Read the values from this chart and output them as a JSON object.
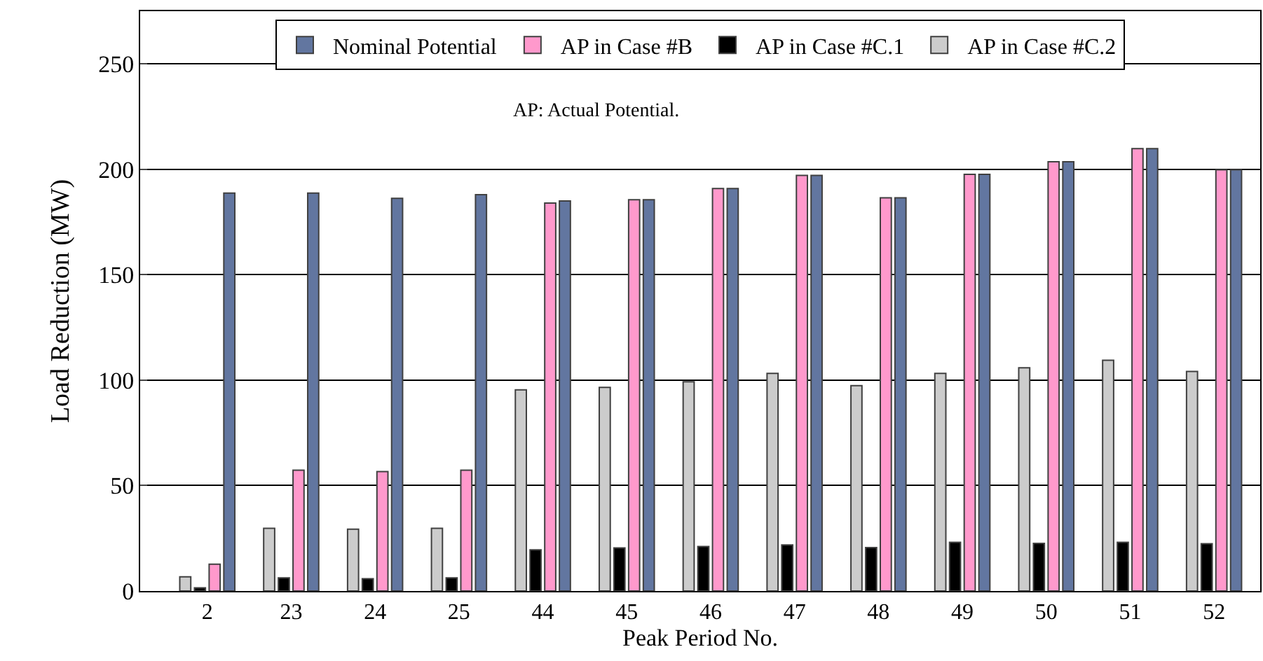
{
  "chart_data": {
    "type": "bar",
    "xlabel": "Peak Period No.",
    "ylabel": "Load Reduction (MW)",
    "categories": [
      "2",
      "23",
      "24",
      "25",
      "44",
      "45",
      "46",
      "47",
      "48",
      "49",
      "50",
      "51",
      "52"
    ],
    "series": [
      {
        "name": "Nominal Potential",
        "color": "#6276a0",
        "values": [
          188.7,
          188.7,
          186.2,
          188,
          185,
          185.6,
          190.9,
          197.1,
          186.5,
          197.6,
          203.6,
          209.8,
          199.8
        ]
      },
      {
        "name": "AP in Case #B",
        "color": "#ff99cc",
        "values": [
          12.7,
          57.3,
          56.6,
          57.3,
          184,
          185.6,
          190.9,
          197.1,
          186.5,
          197.6,
          203.6,
          209.8,
          199.8
        ]
      },
      {
        "name": "AP in Case #C.1",
        "color": "#000000",
        "values": [
          1.5,
          6.2,
          5.8,
          6.2,
          19.5,
          20.4,
          21.1,
          21.8,
          20.6,
          23.1,
          22.6,
          23.1,
          22.4
        ]
      },
      {
        "name": "AP in Case #C.2",
        "color": "#cccccc",
        "values": [
          6.7,
          29.7,
          29.3,
          29.7,
          95.4,
          96.6,
          99.2,
          103.2,
          97.4,
          103.2,
          105.9,
          109.4,
          104.1
        ]
      }
    ],
    "ylim": [
      0,
      275
    ],
    "yticks": [
      0,
      50,
      100,
      150,
      200,
      250
    ],
    "grid": "y",
    "legend": "top",
    "annotations": [
      "AP: Actual Potential."
    ]
  }
}
